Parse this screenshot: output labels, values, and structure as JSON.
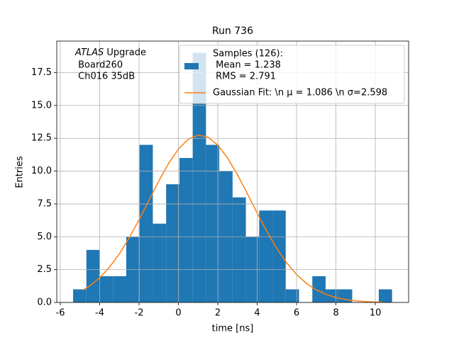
{
  "chart_data": {
    "type": "histogram",
    "title": "Run 736",
    "xlabel": "time [ns]",
    "ylabel": "Entries",
    "annotation": [
      "ATLAS",
      " Upgrade",
      " Board260",
      " Ch016 35dB"
    ],
    "bins": [
      -5.35,
      -4.675,
      -4.0,
      -3.325,
      -2.65,
      -1.975,
      -1.3,
      -0.625,
      0.05,
      0.725,
      1.4,
      2.075,
      2.75,
      3.425,
      4.1,
      4.775,
      5.45,
      6.125,
      6.8,
      7.475,
      8.15,
      8.825,
      9.5,
      10.175,
      10.85
    ],
    "values": [
      1,
      4,
      2,
      2,
      5,
      12,
      6,
      9,
      11,
      19,
      12,
      10,
      8,
      5,
      7,
      7,
      1,
      0,
      2,
      1,
      1,
      0,
      0,
      1
    ],
    "color": "#1f77b4",
    "name": [
      "Samples (126):",
      " Mean = 1.238",
      " RMS = 2.791"
    ],
    "fit": {
      "type": "line",
      "name": "Gaussian Fit: \\n μ = 1.086 \\n σ=2.598",
      "color": "#ff7f0e",
      "x": [
        -4.85,
        -4.5,
        -4,
        -3.5,
        -3,
        -2.5,
        -2,
        -1.5,
        -1,
        -0.5,
        0,
        0.5,
        1,
        1.5,
        2,
        2.5,
        3,
        3.5,
        4,
        4.5,
        5,
        5.5,
        6,
        6.5,
        7,
        7.5,
        8,
        8.5,
        9,
        9.5,
        10,
        10.4
      ],
      "values": [
        0.94,
        1.27,
        1.88,
        2.69,
        3.7,
        4.92,
        6.3,
        7.77,
        9.24,
        10.58,
        11.68,
        12.43,
        12.74,
        12.59,
        11.98,
        10.99,
        9.72,
        8.28,
        6.8,
        5.38,
        4.1,
        3.01,
        2.13,
        1.45,
        0.96,
        0.61,
        0.37,
        0.22,
        0.12,
        0.07,
        0.035,
        0.02
      ]
    },
    "xlim": [
      -6.18,
      11.69
    ],
    "ylim": [
      0,
      19.9
    ],
    "xticks": [
      -6,
      -4,
      -2,
      0,
      2,
      4,
      6,
      8,
      10
    ],
    "yticks": [
      {
        "value": 0,
        "label": "0.0"
      },
      2.5,
      {
        "value": 5,
        "label": "5.0"
      },
      7.5,
      {
        "value": 10,
        "label": "10.0"
      },
      12.5,
      {
        "value": 15,
        "label": "15.0"
      },
      17.5
    ],
    "grid": true,
    "legend": "upper right"
  }
}
